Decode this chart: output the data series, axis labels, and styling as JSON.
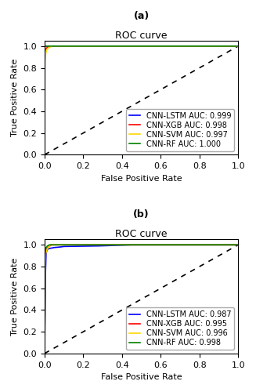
{
  "title_a": "(a)",
  "title_b": "(b)",
  "roc_title": "ROC curve",
  "xlabel": "False Positive Rate",
  "ylabel": "True Positive Rate",
  "panel_a": {
    "curves": [
      {
        "label": "CNN-LSTM AUC: 0.999",
        "color": "#0000ff",
        "fpr": [
          0.0,
          0.0005,
          0.001,
          0.002,
          0.003,
          1.0
        ],
        "tpr": [
          0.0,
          0.95,
          0.98,
          0.995,
          1.0,
          1.0
        ]
      },
      {
        "label": "CNN-XGB AUC: 0.998",
        "color": "#ff0000",
        "fpr": [
          0.0,
          0.001,
          0.003,
          0.007,
          0.015,
          0.03,
          1.0
        ],
        "tpr": [
          0.0,
          0.88,
          0.94,
          0.975,
          0.99,
          1.0,
          1.0
        ]
      },
      {
        "label": "CNN-SVM AUC: 0.997",
        "color": "#ffd700",
        "fpr": [
          0.0,
          0.002,
          0.005,
          0.01,
          0.02,
          0.04,
          1.0
        ],
        "tpr": [
          0.0,
          0.85,
          0.92,
          0.965,
          0.985,
          1.0,
          1.0
        ]
      },
      {
        "label": "CNN-RF AUC: 1.000",
        "color": "#008000",
        "fpr": [
          0.0,
          0.0002,
          0.0005,
          1.0
        ],
        "tpr": [
          0.0,
          0.999,
          1.0,
          1.0
        ]
      }
    ]
  },
  "panel_b": {
    "curves": [
      {
        "label": "CNN-LSTM AUC: 0.987",
        "color": "#0000ff",
        "fpr": [
          0.0,
          0.005,
          0.008,
          0.012,
          0.02,
          0.05,
          0.08,
          0.1,
          0.28,
          0.45,
          1.0
        ],
        "tpr": [
          0.0,
          0.75,
          0.92,
          0.95,
          0.965,
          0.975,
          0.98,
          0.985,
          0.99,
          1.0,
          1.0
        ]
      },
      {
        "label": "CNN-XGB AUC: 0.995",
        "color": "#ff0000",
        "fpr": [
          0.0,
          0.003,
          0.006,
          0.01,
          0.02,
          0.035,
          1.0
        ],
        "tpr": [
          0.0,
          0.84,
          0.93,
          0.96,
          0.98,
          1.0,
          1.0
        ]
      },
      {
        "label": "CNN-SVM AUC: 0.996",
        "color": "#ffd700",
        "fpr": [
          0.0,
          0.003,
          0.006,
          0.012,
          0.02,
          0.03,
          1.0
        ],
        "tpr": [
          0.0,
          0.83,
          0.92,
          0.955,
          0.975,
          1.0,
          1.0
        ]
      },
      {
        "label": "CNN-RF AUC: 0.998",
        "color": "#008000",
        "fpr": [
          0.0,
          0.002,
          0.004,
          0.008,
          0.015,
          0.025,
          1.0
        ],
        "tpr": [
          0.0,
          0.85,
          0.95,
          0.975,
          0.99,
          1.0,
          1.0
        ]
      }
    ]
  },
  "legend_loc": "lower right",
  "diag_color": "black",
  "diag_linestyle": "--",
  "xlim": [
    0.0,
    1.0
  ],
  "ylim": [
    0.0,
    1.05
  ],
  "xticks": [
    0.0,
    0.2,
    0.4,
    0.6,
    0.8,
    1.0
  ],
  "yticks": [
    0.0,
    0.2,
    0.4,
    0.6,
    0.8,
    1.0
  ],
  "figsize": [
    3.27,
    5.0
  ],
  "dpi": 100,
  "title_fontsize": 9,
  "panel_label_fontsize": 9,
  "axis_label_fontsize": 8,
  "tick_fontsize": 8,
  "legend_fontsize": 7,
  "linewidth": 1.2,
  "diag_linewidth": 1.2
}
